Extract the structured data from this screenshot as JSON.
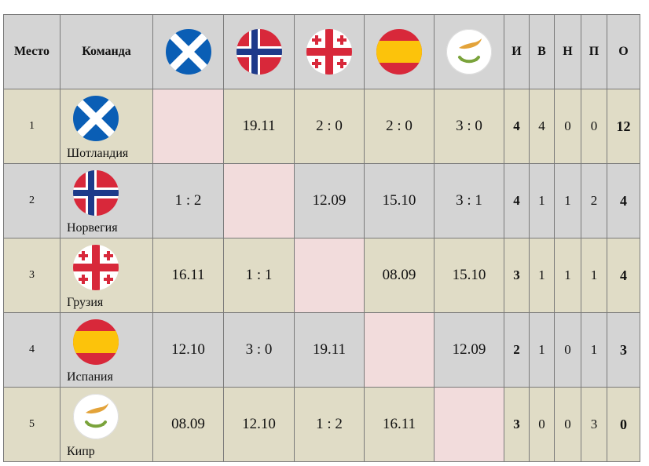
{
  "header": {
    "place": "Место",
    "team": "Команда",
    "games": "И",
    "wins": "В",
    "draws": "Н",
    "losses": "П",
    "points": "О"
  },
  "teams": [
    {
      "place": "1",
      "name": "Шотландия",
      "flag": "scotland-flag-icon",
      "results": [
        "",
        "19.11",
        "2 : 0",
        "2 : 0",
        "3 : 0"
      ],
      "games": "4",
      "wins": "4",
      "draws": "0",
      "losses": "0",
      "points": "12"
    },
    {
      "place": "2",
      "name": "Норвегия",
      "flag": "norway-flag-icon",
      "results": [
        "1 : 2",
        "",
        "12.09",
        "15.10",
        "3 : 1"
      ],
      "games": "4",
      "wins": "1",
      "draws": "1",
      "losses": "2",
      "points": "4"
    },
    {
      "place": "3",
      "name": "Грузия",
      "flag": "georgia-flag-icon",
      "results": [
        "16.11",
        "1 : 1",
        "",
        "08.09",
        "15.10"
      ],
      "games": "3",
      "wins": "1",
      "draws": "1",
      "losses": "1",
      "points": "4"
    },
    {
      "place": "4",
      "name": "Испания",
      "flag": "spain-flag-icon",
      "results": [
        "12.10",
        "3 : 0",
        "19.11",
        "",
        "12.09"
      ],
      "games": "2",
      "wins": "1",
      "draws": "0",
      "losses": "1",
      "points": "3"
    },
    {
      "place": "5",
      "name": "Кипр",
      "flag": "cyprus-flag-icon",
      "results": [
        "08.09",
        "12.10",
        "1 : 2",
        "16.11",
        ""
      ],
      "games": "3",
      "wins": "0",
      "draws": "0",
      "losses": "3",
      "points": "0"
    }
  ],
  "colors": {
    "row_odd": "#e0dcc6",
    "row_even": "#d4d4d4",
    "diagonal": "#f2dcdc",
    "header": "#d4d4d4"
  }
}
